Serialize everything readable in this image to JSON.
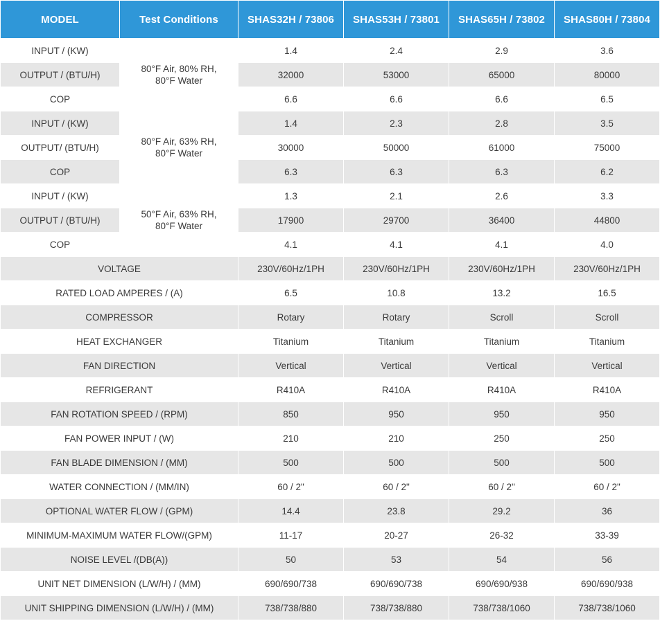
{
  "header": {
    "model": "MODEL",
    "test_conditions": "Test Conditions",
    "models": [
      "SHAS32H / 73806",
      "SHAS53H / 73801",
      "SHAS65H / 73802",
      "SHAS80H / 73804"
    ]
  },
  "conditions": [
    {
      "line1": "80°F Air, 80% RH,",
      "line2": "80°F Water"
    },
    {
      "line1": "80°F Air, 63% RH,",
      "line2": "80°F Water"
    },
    {
      "line1": "50°F Air, 63% RH,",
      "line2": "80°F Water"
    }
  ],
  "perf_rows": [
    {
      "label": "INPUT / (KW)",
      "values": [
        "1.4",
        "2.4",
        "2.9",
        "3.6"
      ]
    },
    {
      "label": "OUTPUT / (BTU/H)",
      "values": [
        "32000",
        "53000",
        "65000",
        "80000"
      ]
    },
    {
      "label": "COP",
      "values": [
        "6.6",
        "6.6",
        "6.6",
        "6.5"
      ]
    },
    {
      "label": "INPUT / (KW)",
      "values": [
        "1.4",
        "2.3",
        "2.8",
        "3.5"
      ]
    },
    {
      "label": "OUTPUT/ (BTU/H)",
      "values": [
        "30000",
        "50000",
        "61000",
        "75000"
      ]
    },
    {
      "label": "COP",
      "values": [
        "6.3",
        "6.3",
        "6.3",
        "6.2"
      ]
    },
    {
      "label": "INPUT / (KW)",
      "values": [
        "1.3",
        "2.1",
        "2.6",
        "3.3"
      ]
    },
    {
      "label": "OUTPUT / (BTU/H)",
      "values": [
        "17900",
        "29700",
        "36400",
        "44800"
      ]
    },
    {
      "label": "COP",
      "values": [
        "4.1",
        "4.1",
        "4.1",
        "4.0"
      ]
    }
  ],
  "spec_rows": [
    {
      "label": "VOLTAGE",
      "values": [
        "230V/60Hz/1PH",
        "230V/60Hz/1PH",
        "230V/60Hz/1PH",
        "230V/60Hz/1PH"
      ]
    },
    {
      "label": "RATED LOAD AMPERES / (A)",
      "values": [
        "6.5",
        "10.8",
        "13.2",
        "16.5"
      ]
    },
    {
      "label": "COMPRESSOR",
      "values": [
        "Rotary",
        "Rotary",
        "Scroll",
        "Scroll"
      ]
    },
    {
      "label": "HEAT EXCHANGER",
      "values": [
        "Titanium",
        "Titanium",
        "Titanium",
        "Titanium"
      ]
    },
    {
      "label": "FAN DIRECTION",
      "values": [
        "Vertical",
        "Vertical",
        "Vertical",
        "Vertical"
      ]
    },
    {
      "label": "REFRIGERANT",
      "values": [
        "R410A",
        "R410A",
        "R410A",
        "R410A"
      ]
    },
    {
      "label": "FAN ROTATION SPEED / (RPM)",
      "values": [
        "850",
        "950",
        "950",
        "950"
      ]
    },
    {
      "label": "FAN POWER INPUT / (W)",
      "values": [
        "210",
        "210",
        "250",
        "250"
      ]
    },
    {
      "label": "FAN BLADE DIMENSION / (MM)",
      "values": [
        "500",
        "500",
        "500",
        "500"
      ]
    },
    {
      "label": "WATER CONNECTION / (MM/IN)",
      "values": [
        "60 / 2\"",
        "60 / 2\"",
        "60 / 2\"",
        "60 / 2\""
      ]
    },
    {
      "label": "OPTIONAL WATER FLOW / (GPM)",
      "values": [
        "14.4",
        "23.8",
        "29.2",
        "36"
      ]
    },
    {
      "label": "MINIMUM-MAXIMUM WATER FLOW/(GPM)",
      "values": [
        "11-17",
        "20-27",
        "26-32",
        "33-39"
      ]
    },
    {
      "label": "NOISE LEVEL /(DB(A))",
      "values": [
        "50",
        "53",
        "54",
        "56"
      ]
    },
    {
      "label": "UNIT NET DIMENSION (L/W/H) / (MM)",
      "values": [
        "690/690/738",
        "690/690/738",
        "690/690/938",
        "690/690/938"
      ]
    },
    {
      "label": "UNIT SHIPPING DIMENSION (L/W/H) / (MM)",
      "values": [
        "738/738/880",
        "738/738/880",
        "738/738/1060",
        "738/738/1060"
      ]
    }
  ],
  "colors": {
    "header_bg": "#2f97d8",
    "header_text": "#ffffff",
    "stripe": "#e6e6e6",
    "text": "#3a3a3a"
  }
}
